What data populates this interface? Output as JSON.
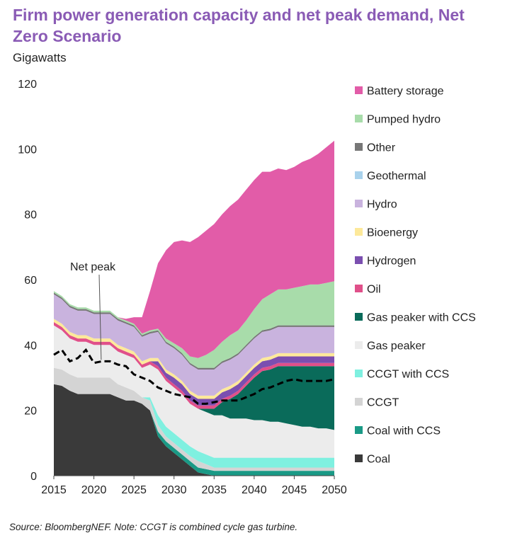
{
  "title": "Firm power generation capacity and net peak demand, Net Zero Scenario",
  "source_note": "Source: BloombergNEF. Note: CCGT is combined cycle gas turbine.",
  "chart_data": {
    "type": "area",
    "stacked": true,
    "ylabel": "Gigawatts",
    "ylim": [
      0,
      120
    ],
    "yticks": [
      0,
      20,
      40,
      60,
      80,
      100,
      120
    ],
    "xlim": [
      2015,
      2050
    ],
    "xticks": [
      2015,
      2020,
      2025,
      2030,
      2035,
      2040,
      2045,
      2050
    ],
    "x": [
      2015,
      2016,
      2017,
      2018,
      2019,
      2020,
      2021,
      2022,
      2023,
      2024,
      2025,
      2026,
      2027,
      2028,
      2029,
      2030,
      2031,
      2032,
      2033,
      2034,
      2035,
      2036,
      2037,
      2038,
      2039,
      2040,
      2041,
      2042,
      2043,
      2044,
      2045,
      2046,
      2047,
      2048,
      2049,
      2050
    ],
    "series": [
      {
        "name": "Coal",
        "color": "#3a3a3a",
        "values": [
          28,
          27.5,
          26,
          25,
          25,
          25,
          25,
          25,
          24,
          23,
          23,
          22,
          20,
          12,
          9,
          7,
          5,
          3,
          1,
          0.5,
          0,
          0,
          0,
          0,
          0,
          0,
          0,
          0,
          0,
          0,
          0,
          0,
          0,
          0,
          0,
          0
        ]
      },
      {
        "name": "Coal with CCS",
        "color": "#1a9a86",
        "values": [
          0,
          0,
          0,
          0,
          0,
          0,
          0,
          0,
          0,
          0,
          0,
          0,
          0,
          1.5,
          1.5,
          1.5,
          1.5,
          1.5,
          1.5,
          1.5,
          1.5,
          1.5,
          1.5,
          1.5,
          1.5,
          1.5,
          1.5,
          1.5,
          1.5,
          1.5,
          1.5,
          1.5,
          1.5,
          1.5,
          1.5,
          1.5
        ]
      },
      {
        "name": "CCGT",
        "color": "#d4d4d4",
        "values": [
          5,
          5,
          5,
          5,
          5,
          5,
          5,
          5,
          4,
          4,
          3,
          2,
          3,
          2,
          1.5,
          1.5,
          1.5,
          1.5,
          2,
          1.5,
          1,
          1,
          1,
          1,
          1,
          1,
          1,
          1,
          1,
          1,
          1,
          1,
          1,
          1,
          1,
          1
        ]
      },
      {
        "name": "CCGT with CCS",
        "color": "#7ff0e0",
        "values": [
          0,
          0,
          0,
          0,
          0,
          0,
          0,
          0,
          0,
          0,
          0,
          0,
          1,
          3,
          3,
          3,
          3,
          3,
          3,
          3,
          3,
          3,
          3,
          3,
          3,
          3,
          3,
          3,
          3,
          3,
          3,
          3,
          3,
          3,
          3,
          3
        ]
      },
      {
        "name": "Gas peaker",
        "color": "#ececec",
        "values": [
          13,
          12,
          11,
          11,
          11,
          10,
          10,
          10,
          10,
          10,
          10,
          9,
          10,
          14,
          14,
          14,
          14,
          13,
          13,
          13,
          13,
          13,
          12,
          12,
          12,
          11.5,
          11.5,
          11,
          11,
          10.5,
          10,
          9.5,
          9.5,
          9,
          9,
          8.5
        ]
      },
      {
        "name": "Gas peaker with CCS",
        "color": "#0a6b5a",
        "values": [
          0,
          0,
          0,
          0,
          0,
          0,
          0,
          0,
          0,
          0,
          0,
          0,
          0,
          0,
          0,
          0,
          0,
          0,
          0,
          1,
          2,
          4,
          6,
          7.5,
          10,
          13,
          15,
          16,
          17,
          17.5,
          18,
          18.5,
          18.5,
          19,
          19,
          19.5
        ]
      },
      {
        "name": "Oil",
        "color": "#e0508a",
        "values": [
          1,
          1,
          1,
          1,
          1,
          1,
          1,
          1,
          1,
          1,
          1,
          1,
          1,
          1,
          1,
          1,
          1,
          1,
          1,
          1,
          1,
          1,
          1,
          1,
          1,
          1,
          1,
          1,
          1,
          1,
          1,
          1,
          1,
          1,
          1,
          1
        ]
      },
      {
        "name": "Hydrogen",
        "color": "#7b4fb0",
        "values": [
          0,
          0,
          0,
          0,
          0,
          0,
          0,
          0,
          0,
          0,
          0,
          0,
          0,
          1.5,
          1.5,
          2,
          2,
          2,
          2,
          2,
          2,
          2,
          2,
          2,
          2,
          2,
          2,
          2,
          2,
          2,
          2,
          2,
          2,
          2,
          2,
          2
        ]
      },
      {
        "name": "Bioenergy",
        "color": "#fde99a",
        "values": [
          1,
          1,
          1,
          1,
          1,
          1,
          1,
          1,
          1,
          1,
          1,
          1,
          1,
          1,
          1,
          1,
          1,
          1,
          1,
          1,
          1,
          1,
          1,
          1,
          1,
          1,
          1,
          1,
          1,
          1,
          1,
          1,
          1,
          1,
          1,
          1
        ]
      },
      {
        "name": "Hydro",
        "color": "#c9b3de",
        "values": [
          7.5,
          7.5,
          7.5,
          7.5,
          7.5,
          7.5,
          7.5,
          7.5,
          7.5,
          7.5,
          7.5,
          7.5,
          7.5,
          8,
          8,
          8,
          8,
          8,
          8,
          8,
          8,
          8,
          8,
          8,
          8,
          8,
          8,
          8,
          8,
          8,
          8,
          8,
          8,
          8,
          8,
          8
        ]
      },
      {
        "name": "Geothermal",
        "color": "#a9d2ec",
        "values": [
          0,
          0,
          0,
          0,
          0,
          0,
          0,
          0,
          0,
          0,
          0,
          0,
          0,
          0,
          0,
          0,
          0,
          0,
          0,
          0,
          0,
          0,
          0,
          0,
          0,
          0,
          0,
          0,
          0,
          0,
          0,
          0,
          0,
          0,
          0,
          0
        ]
      },
      {
        "name": "Other",
        "color": "#777777",
        "values": [
          0.5,
          0.5,
          0.5,
          0.5,
          0.5,
          0.5,
          0.5,
          0.5,
          0.5,
          0.5,
          0.5,
          0.5,
          0.5,
          0.5,
          0.5,
          0.5,
          0.5,
          0.5,
          0.5,
          0.5,
          0.5,
          0.5,
          0.5,
          0.5,
          0.5,
          0.5,
          0.5,
          0.5,
          0.5,
          0.5,
          0.5,
          0.5,
          0.5,
          0.5,
          0.5,
          0.5
        ]
      },
      {
        "name": "Pumped hydro",
        "color": "#a8dcaa",
        "values": [
          0.5,
          0.5,
          0.5,
          0.5,
          0.5,
          0.5,
          0.5,
          0.5,
          0.5,
          0.5,
          0.5,
          0.5,
          0.5,
          0.5,
          1,
          1,
          1.5,
          2,
          3,
          4,
          5.5,
          6,
          7,
          7,
          7.5,
          8.5,
          9.5,
          10.5,
          11,
          11,
          11.5,
          12,
          12.5,
          12.5,
          13,
          13.5
        ]
      },
      {
        "name": "Battery storage",
        "color": "#e25ca8",
        "values": [
          0,
          0,
          0,
          0,
          0,
          0,
          0,
          0,
          0,
          0.5,
          2,
          5,
          12,
          20,
          27,
          31,
          33,
          35,
          37,
          38,
          38.5,
          39,
          39.5,
          40,
          40,
          39.5,
          39,
          37.5,
          37,
          36.5,
          37,
          38,
          38.5,
          40,
          41.5,
          43
        ]
      }
    ],
    "legend_order": [
      "Battery storage",
      "Pumped hydro",
      "Other",
      "Geothermal",
      "Hydro",
      "Bioenergy",
      "Hydrogen",
      "Oil",
      "Gas peaker with CCS",
      "Gas peaker",
      "CCGT with CCS",
      "CCGT",
      "Coal with CCS",
      "Coal"
    ],
    "net_peak": {
      "name": "Net peak",
      "style": "dashed",
      "color": "#000000",
      "values": [
        37,
        38.5,
        35,
        36,
        38.5,
        34.5,
        35,
        35,
        34,
        33.5,
        31,
        30,
        29,
        27,
        26,
        25,
        24.5,
        24,
        22,
        22,
        22.5,
        23,
        23,
        23,
        24,
        25,
        26.5,
        27,
        28,
        29,
        29.5,
        29,
        29,
        29,
        29,
        29.5
      ]
    },
    "annotations": [
      {
        "text": "Net peak",
        "x": 2021,
        "y": 35
      }
    ]
  }
}
